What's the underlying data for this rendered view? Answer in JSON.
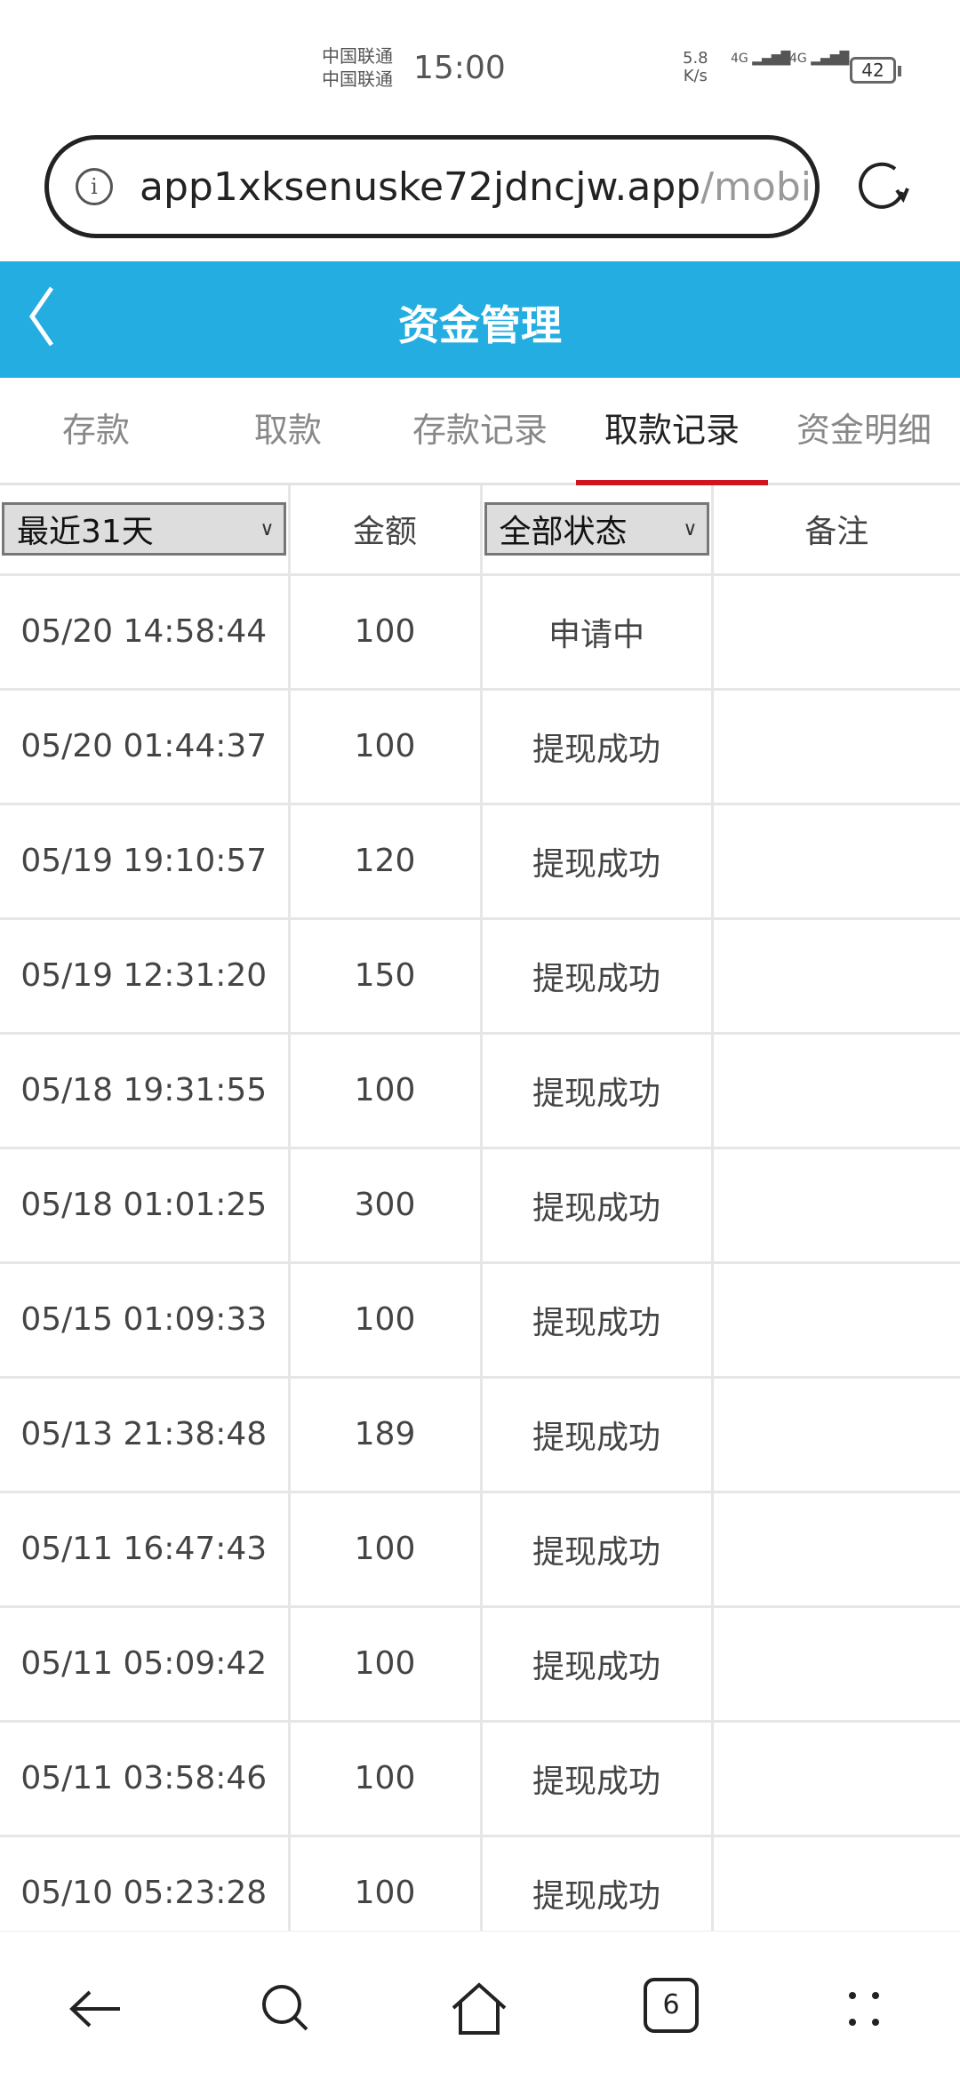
{
  "status_bar": {
    "carrier1": "中国联通",
    "carrier2": "中国联通",
    "time": "15:00",
    "speed_value": "5.8",
    "speed_unit": "K/s",
    "network1": "4G",
    "network2": "4G",
    "battery": "42"
  },
  "browser": {
    "url_host": "app1xksenuske72jdncjw.app",
    "url_path": "/mobi",
    "tab_count": "6"
  },
  "header": {
    "title": "资金管理"
  },
  "tabs": [
    {
      "label": "存款"
    },
    {
      "label": "取款"
    },
    {
      "label": "存款记录"
    },
    {
      "label": "取款记录",
      "active": true
    },
    {
      "label": "资金明细"
    }
  ],
  "table": {
    "headers": {
      "date_filter": "最近31天",
      "amount": "金额",
      "status_filter": "全部状态",
      "remark": "备注"
    },
    "rows": [
      {
        "time": "05/20 14:58:44",
        "amount": "100",
        "status": "申请中",
        "remark": ""
      },
      {
        "time": "05/20 01:44:37",
        "amount": "100",
        "status": "提现成功",
        "remark": ""
      },
      {
        "time": "05/19 19:10:57",
        "amount": "120",
        "status": "提现成功",
        "remark": ""
      },
      {
        "time": "05/19 12:31:20",
        "amount": "150",
        "status": "提现成功",
        "remark": ""
      },
      {
        "time": "05/18 19:31:55",
        "amount": "100",
        "status": "提现成功",
        "remark": ""
      },
      {
        "time": "05/18 01:01:25",
        "amount": "300",
        "status": "提现成功",
        "remark": ""
      },
      {
        "time": "05/15 01:09:33",
        "amount": "100",
        "status": "提现成功",
        "remark": ""
      },
      {
        "time": "05/13 21:38:48",
        "amount": "189",
        "status": "提现成功",
        "remark": ""
      },
      {
        "time": "05/11 16:47:43",
        "amount": "100",
        "status": "提现成功",
        "remark": ""
      },
      {
        "time": "05/11 05:09:42",
        "amount": "100",
        "status": "提现成功",
        "remark": ""
      },
      {
        "time": "05/11 03:58:46",
        "amount": "100",
        "status": "提现成功",
        "remark": ""
      },
      {
        "time": "05/10 05:23:28",
        "amount": "100",
        "status": "提现成功",
        "remark": ""
      }
    ]
  },
  "colors": {
    "header_bg": "#24ade0",
    "active_tab_underline": "#d2141e"
  }
}
